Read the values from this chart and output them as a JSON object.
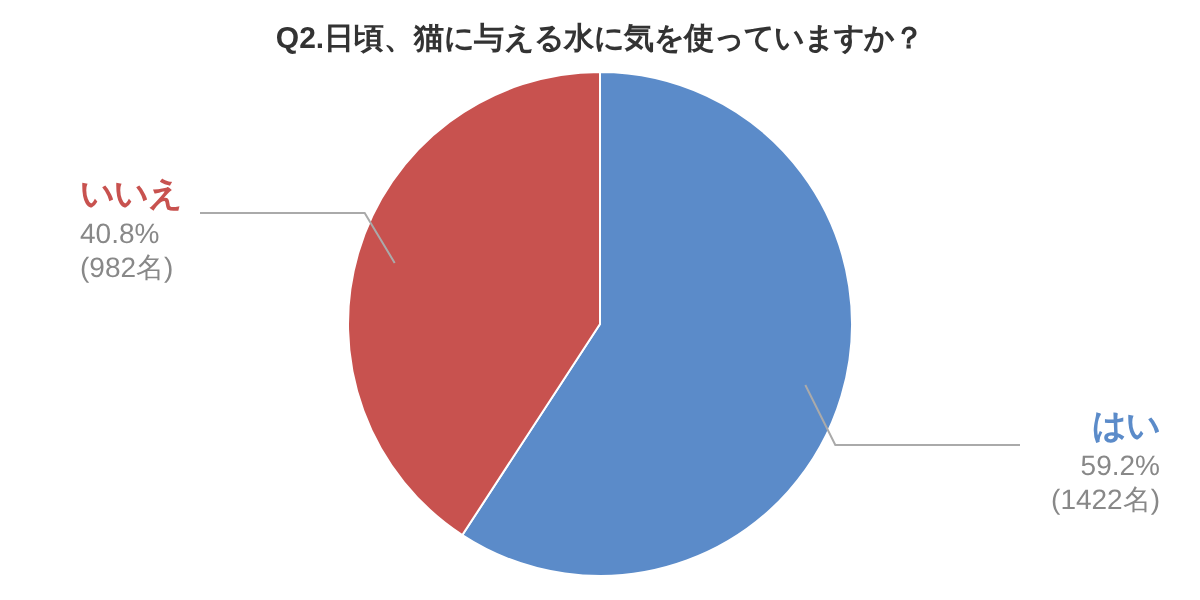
{
  "chart_data": {
    "type": "pie",
    "title": "Q2.日頃、猫に与える水に気を使っていますか？",
    "categories": [
      "はい",
      "いいえ"
    ],
    "values": [
      59.2,
      40.8
    ],
    "colors": [
      "#5b8bc9",
      "#c8524f"
    ],
    "value_labels": [
      "59.2%\n(1422名)",
      "40.8%\n(982名)"
    ]
  }
}
